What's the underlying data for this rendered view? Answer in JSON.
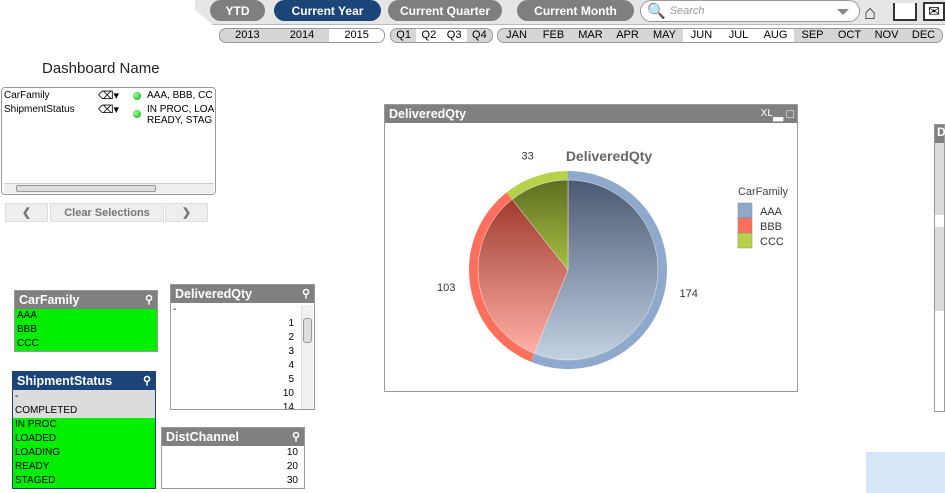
{
  "toolbar": {
    "buttons": [
      {
        "label": "YTD",
        "active": false
      },
      {
        "label": "Current Year",
        "active": true
      },
      {
        "label": "Current Quarter",
        "active": false
      },
      {
        "label": "Current Month",
        "active": false
      }
    ],
    "search_placeholder": "Search"
  },
  "years": [
    {
      "label": "2013",
      "sel": false
    },
    {
      "label": "2014",
      "sel": false
    },
    {
      "label": "2015",
      "sel": true
    }
  ],
  "quarters": [
    {
      "label": "Q1",
      "sel": false
    },
    {
      "label": "Q2",
      "sel": true
    },
    {
      "label": "Q3",
      "sel": true
    },
    {
      "label": "Q4",
      "sel": false
    }
  ],
  "months": [
    {
      "label": "JAN",
      "sel": false
    },
    {
      "label": "FEB",
      "sel": false
    },
    {
      "label": "MAR",
      "sel": false
    },
    {
      "label": "APR",
      "sel": false
    },
    {
      "label": "MAY",
      "sel": false
    },
    {
      "label": "JUN",
      "sel": true
    },
    {
      "label": "JUL",
      "sel": true
    },
    {
      "label": "AUG",
      "sel": true
    },
    {
      "label": "SEP",
      "sel": false
    },
    {
      "label": "OCT",
      "sel": false
    },
    {
      "label": "NOV",
      "sel": false
    },
    {
      "label": "DEC",
      "sel": false
    }
  ],
  "dashboard_title": "Dashboard Name",
  "current_selections": [
    {
      "field": "CarFamily",
      "value": "AAA, BBB, CC"
    },
    {
      "field": "ShipmentStatus",
      "value": "IN PROC, LOA",
      "value2": "READY, STAG"
    }
  ],
  "clear_selections": "Clear Selections",
  "carfamily": {
    "title": "CarFamily",
    "items": [
      "AAA",
      "BBB",
      "CCC"
    ]
  },
  "shipmentstatus": {
    "title": "ShipmentStatus",
    "items": [
      {
        "v": "-",
        "s": "x"
      },
      {
        "v": "COMPLETED",
        "s": "x"
      },
      {
        "v": "IN PROC",
        "s": "g"
      },
      {
        "v": "LOADED",
        "s": "g"
      },
      {
        "v": "LOADING",
        "s": "g"
      },
      {
        "v": "READY",
        "s": "g"
      },
      {
        "v": "STAGED",
        "s": "g"
      }
    ]
  },
  "deliveredqty_list": {
    "title": "DeliveredQty",
    "items": [
      "-",
      "1",
      "2",
      "3",
      "4",
      "5",
      "10",
      "14"
    ]
  },
  "distchannel": {
    "title": "DistChannel",
    "items": [
      "10",
      "20",
      "30"
    ]
  },
  "chart_box": {
    "title": "DeliveredQty",
    "icons": "XL"
  },
  "right_panel": {
    "title": "D"
  },
  "chart_data": {
    "type": "pie",
    "title": "DeliveredQty",
    "legend_title": "CarFamily",
    "legend_position": "right",
    "slices": [
      {
        "label": "AAA",
        "value": 174,
        "color": "#8ea9cb"
      },
      {
        "label": "BBB",
        "value": 103,
        "color": "#ff6f5e"
      },
      {
        "label": "CCC",
        "value": 33,
        "color": "#b5d24a"
      }
    ]
  }
}
